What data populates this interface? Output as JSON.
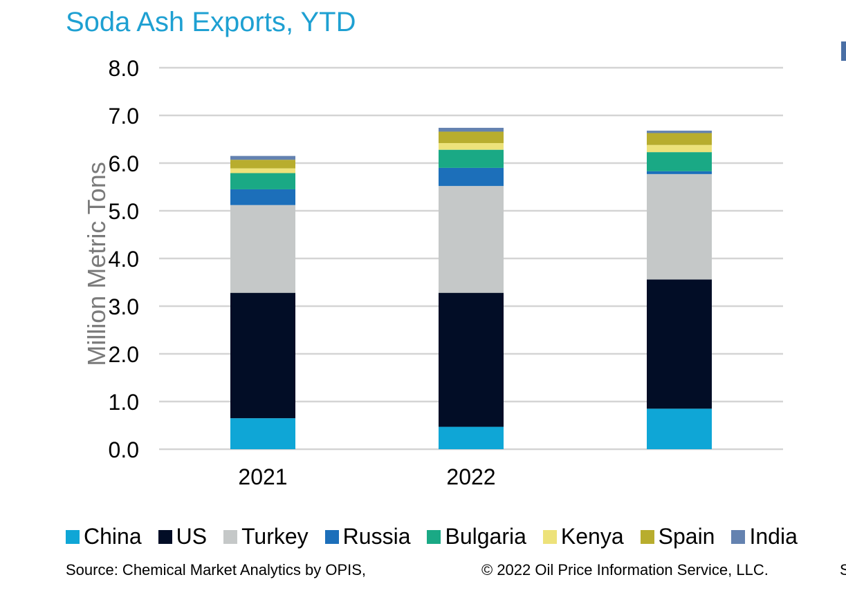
{
  "chart_data": {
    "type": "bar",
    "stacked": true,
    "title": "Soda Ash Exports, YTD",
    "ylabel": "Million Metric Tons",
    "xlabel": "",
    "ylim": [
      0,
      8
    ],
    "yticks": [
      "0.0",
      "1.0",
      "2.0",
      "3.0",
      "4.0",
      "5.0",
      "6.0",
      "7.0",
      "8.0"
    ],
    "grid": true,
    "legend_position": "bottom",
    "categories": [
      "2021",
      "2022",
      ""
    ],
    "series": [
      {
        "name": "China",
        "color": "#0fa6d6",
        "values": [
          0.65,
          0.47,
          0.85
        ]
      },
      {
        "name": "US",
        "color": "#020d26",
        "values": [
          2.63,
          2.81,
          2.71
        ]
      },
      {
        "name": "Turkey",
        "color": "#c5c8c8",
        "values": [
          1.84,
          2.24,
          2.21
        ]
      },
      {
        "name": "Russia",
        "color": "#1c6fba",
        "values": [
          0.33,
          0.38,
          0.06
        ]
      },
      {
        "name": "Bulgaria",
        "color": "#1aa985",
        "values": [
          0.34,
          0.38,
          0.4
        ]
      },
      {
        "name": "Kenya",
        "color": "#ede27a",
        "values": [
          0.1,
          0.14,
          0.15
        ]
      },
      {
        "name": "Spain",
        "color": "#b8ad2e",
        "values": [
          0.18,
          0.24,
          0.25
        ]
      },
      {
        "name": "India",
        "color": "#6482b0",
        "values": [
          0.08,
          0.08,
          0.05
        ]
      }
    ]
  },
  "footer": {
    "source": "Source: Chemical Market Analytics by OPIS,",
    "copyright": "© 2022 Oil Price Information Service, LLC.",
    "edge": "S"
  }
}
